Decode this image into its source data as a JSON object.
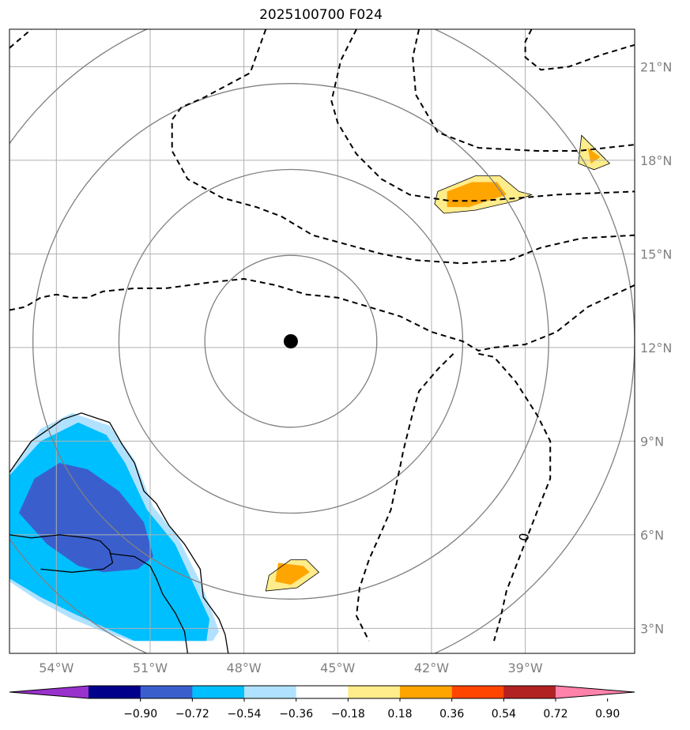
{
  "chart_data": {
    "type": "map",
    "title": "2025100700 F024",
    "projection": "geographic",
    "lon_range": [
      -55.5,
      -35.5
    ],
    "lat_range": [
      2.2,
      22.2
    ],
    "grid": true,
    "x_ticks": [
      {
        "lon": -54,
        "label": "54°W"
      },
      {
        "lon": -51,
        "label": "51°W"
      },
      {
        "lon": -48,
        "label": "48°W"
      },
      {
        "lon": -45,
        "label": "45°W"
      },
      {
        "lon": -42,
        "label": "42°W"
      },
      {
        "lon": -39,
        "label": "39°W"
      }
    ],
    "y_ticks": [
      {
        "lat": 3,
        "label": "3°N"
      },
      {
        "lat": 6,
        "label": "6°N"
      },
      {
        "lat": 9,
        "label": "9°N"
      },
      {
        "lat": 12,
        "label": "12°N"
      },
      {
        "lat": 15,
        "label": "15°N"
      },
      {
        "lat": 18,
        "label": "18°N"
      },
      {
        "lat": 21,
        "label": "21°N"
      }
    ],
    "center_point": {
      "lon": -46.5,
      "lat": 12.2
    },
    "range_rings_deg": [
      2.75,
      5.5,
      8.25,
      11
    ],
    "contour_label": "0",
    "colorbar": {
      "ticks": [
        "−0.90",
        "−0.72",
        "−0.54",
        "−0.36",
        "−0.18",
        "0.18",
        "0.36",
        "0.54",
        "0.72",
        "0.90"
      ],
      "colors": [
        "#9932cc",
        "#00008b",
        "#3a5fcd",
        "#00bfff",
        "#b0e2ff",
        "#ffffff",
        "#ffec8b",
        "#ffa500",
        "#ff4500",
        "#b22222",
        "#ff82ab"
      ],
      "extend": "both"
    },
    "filled_regions": [
      {
        "level": "-0.18 to -0.36",
        "color": "#b0e2ff",
        "polygon": [
          [
            -55.5,
            8
          ],
          [
            -54.5,
            9.4
          ],
          [
            -53.5,
            9.9
          ],
          [
            -52.3,
            9.5
          ],
          [
            -51.5,
            8.4
          ],
          [
            -50.9,
            6.9
          ],
          [
            -50.1,
            5.9
          ],
          [
            -49.4,
            4.5
          ],
          [
            -48.9,
            3.2
          ],
          [
            -48.8,
            2.9
          ],
          [
            -49,
            2.6
          ],
          [
            -51.6,
            2.6
          ],
          [
            -52.5,
            2.9
          ],
          [
            -53.5,
            3.3
          ],
          [
            -54.6,
            3.9
          ],
          [
            -55.5,
            4.5
          ]
        ]
      },
      {
        "level": "-0.36 to -0.54",
        "color": "#00bfff",
        "polygon": [
          [
            -55.5,
            7.9
          ],
          [
            -54.5,
            9.0
          ],
          [
            -53.3,
            9.6
          ],
          [
            -52.4,
            9.2
          ],
          [
            -51.8,
            8.3
          ],
          [
            -51.1,
            6.8
          ],
          [
            -50.2,
            5.7
          ],
          [
            -49.6,
            4.4
          ],
          [
            -49.1,
            3.3
          ],
          [
            -49.2,
            2.6
          ],
          [
            -51.5,
            2.6
          ],
          [
            -52.4,
            3.0
          ],
          [
            -53.5,
            3.5
          ],
          [
            -54.5,
            4.0
          ],
          [
            -55.5,
            4.6
          ]
        ]
      },
      {
        "level": "-0.54 to -0.72",
        "color": "#3a5fcd",
        "polygon": [
          [
            -55.2,
            6.7
          ],
          [
            -54.7,
            7.8
          ],
          [
            -53.9,
            8.3
          ],
          [
            -53,
            8.1
          ],
          [
            -52,
            7.4
          ],
          [
            -51.2,
            6.4
          ],
          [
            -50.9,
            5.3
          ],
          [
            -51.4,
            4.9
          ],
          [
            -52.5,
            4.8
          ],
          [
            -53.3,
            5.0
          ],
          [
            -54.3,
            5.7
          ]
        ]
      },
      {
        "level": "0.18 to 0.36",
        "color": "#ffec8b",
        "polygon": [
          [
            -46.5,
            5.2
          ],
          [
            -46.0,
            5.2
          ],
          [
            -45.6,
            4.8
          ],
          [
            -46.3,
            4.3
          ],
          [
            -47.3,
            4.2
          ],
          [
            -47.2,
            4.7
          ]
        ]
      },
      {
        "level": "0.36 to 0.54",
        "color": "#ffa500",
        "polygon": [
          [
            -46.9,
            5.1
          ],
          [
            -46.1,
            5.0
          ],
          [
            -45.9,
            4.8
          ],
          [
            -46.5,
            4.4
          ],
          [
            -47.0,
            4.5
          ]
        ]
      },
      {
        "level": "0.18 to 0.36",
        "color": "#ffec8b",
        "polygon": [
          [
            -41.8,
            17.0
          ],
          [
            -40.6,
            17.5
          ],
          [
            -39.8,
            17.5
          ],
          [
            -39.2,
            17.0
          ],
          [
            -38.8,
            16.9
          ],
          [
            -39.3,
            16.7
          ],
          [
            -40.6,
            16.4
          ],
          [
            -41.6,
            16.3
          ],
          [
            -41.9,
            16.6
          ]
        ]
      },
      {
        "level": "0.36 to 0.54",
        "color": "#ffa500",
        "polygon": [
          [
            -41.5,
            17.0
          ],
          [
            -40.7,
            17.3
          ],
          [
            -39.9,
            17.3
          ],
          [
            -39.6,
            16.9
          ],
          [
            -39.9,
            16.8
          ],
          [
            -40.8,
            16.5
          ],
          [
            -41.5,
            16.5
          ]
        ]
      },
      {
        "level": "0.18 to 0.36",
        "color": "#ffec8b",
        "polygon": [
          [
            -37.2,
            18.8
          ],
          [
            -36.7,
            18.3
          ],
          [
            -36.3,
            17.9
          ],
          [
            -36.8,
            17.7
          ],
          [
            -37.3,
            17.9
          ]
        ]
      },
      {
        "level": "0.36 to 0.54",
        "color": "#ffa500",
        "polygon": [
          [
            -37.0,
            18.4
          ],
          [
            -36.6,
            18.1
          ],
          [
            -36.9,
            17.9
          ]
        ]
      }
    ],
    "dashed_contours": [
      [
        [
          -55.5,
          21.6
        ],
        [
          -54.8,
          22.2
        ]
      ],
      [
        [
          -55.5,
          13.2
        ],
        [
          -55,
          13.3
        ],
        [
          -54.5,
          13.6
        ],
        [
          -54,
          13.7
        ],
        [
          -53.5,
          13.6
        ],
        [
          -53,
          13.6
        ],
        [
          -52.5,
          13.8
        ],
        [
          -51.5,
          13.9
        ],
        [
          -50.5,
          13.9
        ],
        [
          -49,
          14.1
        ],
        [
          -48,
          14.2
        ],
        [
          -47,
          14.0
        ],
        [
          -46,
          13.7
        ],
        [
          -45,
          13.6
        ],
        [
          -44,
          13.3
        ],
        [
          -43,
          13.0
        ],
        [
          -42,
          12.5
        ],
        [
          -41,
          12.2
        ],
        [
          -40.5,
          11.9
        ],
        [
          -40,
          12.0
        ],
        [
          -39,
          12.1
        ],
        [
          -38,
          12.5
        ],
        [
          -37,
          13.3
        ],
        [
          -35.5,
          14.0
        ]
      ],
      [
        [
          -44.4,
          22.2
        ],
        [
          -44.9,
          21.2
        ],
        [
          -45.2,
          19.9
        ],
        [
          -45,
          19.2
        ],
        [
          -44.4,
          18.2
        ],
        [
          -43.6,
          17.4
        ],
        [
          -42.7,
          16.9
        ],
        [
          -41.4,
          16.7
        ],
        [
          -40.5,
          16.7
        ],
        [
          -39.1,
          16.8
        ],
        [
          -38.0,
          16.9
        ],
        [
          -35.5,
          17.0
        ]
      ],
      [
        [
          -47.3,
          22.2
        ],
        [
          -47.8,
          20.8
        ],
        [
          -49.3,
          20.0
        ],
        [
          -50,
          19.7
        ],
        [
          -50.3,
          19.3
        ],
        [
          -50.3,
          18.3
        ],
        [
          -49.8,
          17.4
        ],
        [
          -48.7,
          16.8
        ],
        [
          -47.6,
          16.5
        ],
        [
          -46.8,
          16.2
        ],
        [
          -45.8,
          15.6
        ],
        [
          -44.7,
          15.3
        ],
        [
          -43.6,
          15.0
        ],
        [
          -42.5,
          14.8
        ],
        [
          -41.0,
          14.7
        ],
        [
          -39.5,
          14.8
        ],
        [
          -38.5,
          15.2
        ],
        [
          -37.2,
          15.5
        ],
        [
          -35.5,
          15.6
        ]
      ],
      [
        [
          -42.4,
          22.2
        ],
        [
          -42.6,
          21.3
        ],
        [
          -42.5,
          20.1
        ],
        [
          -41.8,
          18.9
        ],
        [
          -40.5,
          18.4
        ],
        [
          -38.6,
          18.3
        ],
        [
          -37.3,
          18.3
        ],
        [
          -35.5,
          18.5
        ]
      ],
      [
        [
          -38.8,
          22.2
        ],
        [
          -39,
          21.8
        ],
        [
          -39,
          21.3
        ],
        [
          -38.5,
          20.9
        ],
        [
          -37.6,
          21.0
        ],
        [
          -36.5,
          21.4
        ],
        [
          -35.5,
          21.7
        ]
      ],
      [
        [
          -41.3,
          11.8
        ],
        [
          -41.8,
          11.3
        ],
        [
          -42.4,
          10.6
        ],
        [
          -42.6,
          9.9
        ],
        [
          -42.9,
          8.7
        ],
        [
          -43,
          8.2
        ],
        [
          -43.3,
          6.8
        ],
        [
          -43.6,
          6.1
        ],
        [
          -44.0,
          5.2
        ],
        [
          -44.3,
          4.3
        ],
        [
          -44.4,
          3.4
        ],
        [
          -44,
          2.6
        ]
      ],
      [
        [
          -40.5,
          11.8
        ],
        [
          -40.0,
          11.7
        ],
        [
          -39.3,
          10.9
        ],
        [
          -38.6,
          9.8
        ],
        [
          -38.2,
          9.0
        ],
        [
          -38.2,
          7.8
        ],
        [
          -38.6,
          6.8
        ],
        [
          -39.1,
          5.5
        ],
        [
          -39.6,
          4.2
        ],
        [
          -39.8,
          3.3
        ],
        [
          -40,
          2.6
        ]
      ]
    ],
    "coastlines": [
      [
        [
          -55.5,
          8.0
        ],
        [
          -54.8,
          9.0
        ],
        [
          -53.8,
          9.7
        ],
        [
          -53.2,
          9.9
        ],
        [
          -52.3,
          9.6
        ],
        [
          -51.9,
          8.9
        ],
        [
          -51.5,
          8.3
        ],
        [
          -51.2,
          7.4
        ],
        [
          -50.8,
          7.0
        ],
        [
          -50.4,
          6.3
        ],
        [
          -49.9,
          5.7
        ],
        [
          -49.4,
          4.9
        ],
        [
          -49.3,
          4.0
        ],
        [
          -48.8,
          3.3
        ],
        [
          -48.6,
          2.8
        ],
        [
          -48.5,
          2.2
        ]
      ],
      [
        [
          -55.5,
          6.0
        ],
        [
          -54.8,
          5.9
        ],
        [
          -53.9,
          6.0
        ],
        [
          -53.0,
          5.9
        ],
        [
          -52.6,
          5.8
        ],
        [
          -52.3,
          5.5
        ],
        [
          -52.2,
          5.1
        ],
        [
          -52.5,
          4.9
        ],
        [
          -53.5,
          4.8
        ],
        [
          -54.5,
          4.9
        ]
      ],
      [
        [
          -52.3,
          5.4
        ],
        [
          -51.5,
          5.3
        ],
        [
          -51.0,
          5.0
        ],
        [
          -50.8,
          4.6
        ],
        [
          -50.6,
          4.1
        ],
        [
          -50.2,
          3.5
        ],
        [
          -49.9,
          2.9
        ],
        [
          -49.8,
          2.2
        ]
      ]
    ]
  }
}
